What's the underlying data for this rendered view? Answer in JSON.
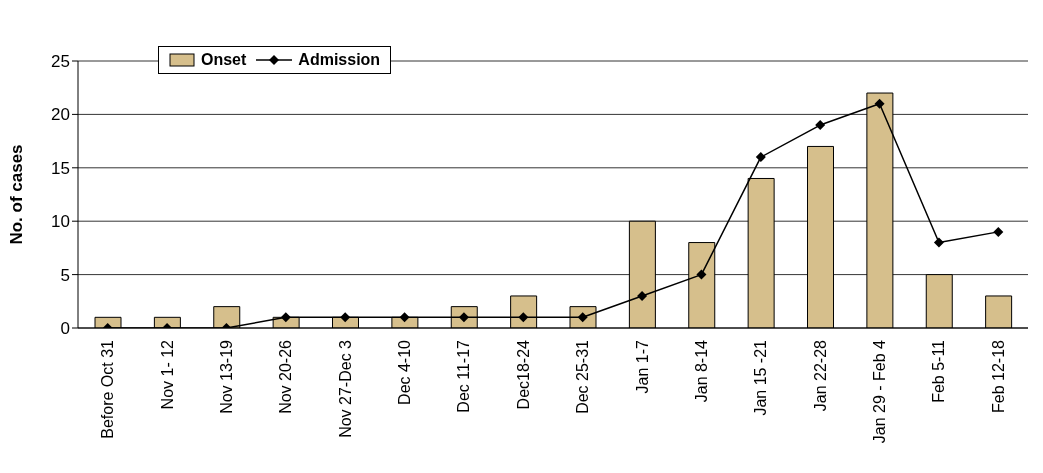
{
  "chart_data": {
    "type": "bar",
    "ylabel": "No. of cases",
    "categories": [
      "Before Oct 31",
      "Nov 1- 12",
      "Nov 13-19",
      "Nov 20-26",
      "Nov 27-Dec 3",
      "Dec 4-10",
      "Dec 11-17",
      "Dec18-24",
      "Dec 25-31",
      "Jan 1-7",
      "Jan 8-14",
      "Jan 15 -21",
      "Jan 22-28",
      "Jan 29 - Feb 4",
      "Feb 5-11",
      "Feb 12-18"
    ],
    "series": [
      {
        "name": "Onset",
        "color": "#d6bf8c",
        "values": [
          1,
          1,
          2,
          1,
          1,
          1,
          2,
          3,
          2,
          10,
          8,
          14,
          17,
          22,
          5,
          3
        ]
      },
      {
        "name": "Admission",
        "type": "line",
        "color": "#000000",
        "values": [
          0,
          0,
          0,
          1,
          1,
          1,
          1,
          1,
          1,
          3,
          5,
          16,
          19,
          21,
          8,
          9
        ]
      }
    ],
    "ylim": [
      0,
      25
    ],
    "yticks": [
      0,
      5,
      10,
      15,
      20,
      25
    ],
    "grid": "y",
    "legend": "top left",
    "marker": "diamond",
    "line_style": "solid"
  }
}
